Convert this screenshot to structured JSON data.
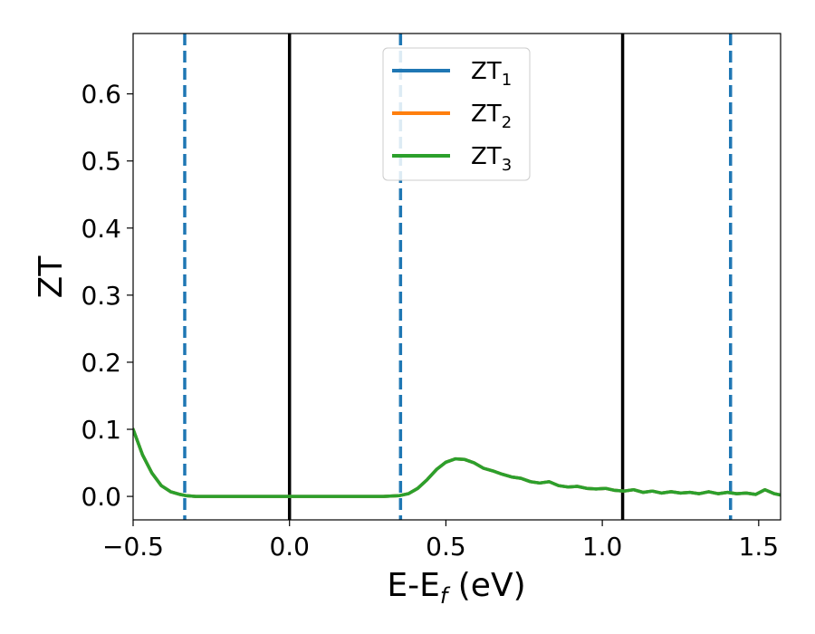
{
  "chart_data": {
    "type": "line",
    "title": "",
    "xlabel": {
      "base": "E-E",
      "sub": "f",
      "unit": " (eV)"
    },
    "ylabel": "ZT",
    "xlim": [
      -0.5,
      1.57
    ],
    "ylim": [
      -0.035,
      0.69
    ],
    "x_ticks": [
      -0.5,
      0.0,
      0.5,
      1.0,
      1.5
    ],
    "x_tick_labels": [
      "−0.5",
      "0.0",
      "0.5",
      "1.0",
      "1.5"
    ],
    "y_ticks": [
      0.0,
      0.1,
      0.2,
      0.3,
      0.4,
      0.5,
      0.6
    ],
    "y_tick_labels": [
      "0.0",
      "0.1",
      "0.2",
      "0.3",
      "0.4",
      "0.5",
      "0.6"
    ],
    "grid": false,
    "legend_position": "top-center",
    "series": [
      {
        "name": "ZT",
        "sub": "1",
        "color": "#1f77b4",
        "x": [
          -0.5,
          -0.47,
          -0.44,
          -0.41,
          -0.38,
          -0.35,
          -0.33,
          -0.3,
          -0.25,
          -0.2,
          -0.1,
          0.0,
          0.1,
          0.2,
          0.3,
          0.35,
          0.38,
          0.41,
          0.44,
          0.47,
          0.5,
          0.53,
          0.56,
          0.59,
          0.62,
          0.65,
          0.68,
          0.71,
          0.74,
          0.77,
          0.8,
          0.83,
          0.86,
          0.89,
          0.92,
          0.95,
          0.98,
          1.01,
          1.04,
          1.07,
          1.1,
          1.13,
          1.16,
          1.19,
          1.22,
          1.25,
          1.28,
          1.31,
          1.34,
          1.37,
          1.4,
          1.43,
          1.46,
          1.49,
          1.52,
          1.55,
          1.57
        ],
        "y": [
          0.1,
          0.062,
          0.035,
          0.016,
          0.007,
          0.003,
          0.001,
          0.0,
          0.0,
          0.0,
          0.0,
          0.0,
          0.0,
          0.0,
          0.0,
          0.001,
          0.004,
          0.012,
          0.025,
          0.04,
          0.051,
          0.056,
          0.055,
          0.05,
          0.042,
          0.038,
          0.033,
          0.029,
          0.027,
          0.022,
          0.02,
          0.022,
          0.016,
          0.014,
          0.015,
          0.012,
          0.011,
          0.012,
          0.009,
          0.008,
          0.01,
          0.006,
          0.008,
          0.005,
          0.007,
          0.005,
          0.006,
          0.004,
          0.007,
          0.004,
          0.006,
          0.004,
          0.005,
          0.003,
          0.01,
          0.004,
          0.002
        ]
      },
      {
        "name": "ZT",
        "sub": "2",
        "color": "#ff7f0e",
        "x": [
          -0.5,
          -0.47,
          -0.44,
          -0.41,
          -0.38,
          -0.35,
          -0.33,
          -0.3,
          -0.25,
          -0.2,
          -0.1,
          0.0,
          0.1,
          0.2,
          0.3,
          0.35,
          0.38,
          0.41,
          0.44,
          0.47,
          0.5,
          0.53,
          0.56,
          0.59,
          0.62,
          0.65,
          0.68,
          0.71,
          0.74,
          0.77,
          0.8,
          0.83,
          0.86,
          0.89,
          0.92,
          0.95,
          0.98,
          1.01,
          1.04,
          1.07,
          1.1,
          1.13,
          1.16,
          1.19,
          1.22,
          1.25,
          1.28,
          1.31,
          1.34,
          1.37,
          1.4,
          1.43,
          1.46,
          1.49,
          1.52,
          1.55,
          1.57
        ],
        "y": [
          0.1,
          0.062,
          0.035,
          0.016,
          0.007,
          0.003,
          0.001,
          0.0,
          0.0,
          0.0,
          0.0,
          0.0,
          0.0,
          0.0,
          0.0,
          0.001,
          0.004,
          0.012,
          0.025,
          0.04,
          0.051,
          0.056,
          0.055,
          0.05,
          0.042,
          0.038,
          0.033,
          0.029,
          0.027,
          0.022,
          0.02,
          0.022,
          0.016,
          0.014,
          0.015,
          0.012,
          0.011,
          0.012,
          0.009,
          0.008,
          0.01,
          0.006,
          0.008,
          0.005,
          0.007,
          0.005,
          0.006,
          0.004,
          0.007,
          0.004,
          0.006,
          0.004,
          0.005,
          0.003,
          0.01,
          0.004,
          0.002
        ]
      },
      {
        "name": "ZT",
        "sub": "3",
        "color": "#2ca02c",
        "x": [
          -0.5,
          -0.47,
          -0.44,
          -0.41,
          -0.38,
          -0.35,
          -0.33,
          -0.3,
          -0.25,
          -0.2,
          -0.1,
          0.0,
          0.1,
          0.2,
          0.3,
          0.35,
          0.38,
          0.41,
          0.44,
          0.47,
          0.5,
          0.53,
          0.56,
          0.59,
          0.62,
          0.65,
          0.68,
          0.71,
          0.74,
          0.77,
          0.8,
          0.83,
          0.86,
          0.89,
          0.92,
          0.95,
          0.98,
          1.01,
          1.04,
          1.07,
          1.1,
          1.13,
          1.16,
          1.19,
          1.22,
          1.25,
          1.28,
          1.31,
          1.34,
          1.37,
          1.4,
          1.43,
          1.46,
          1.49,
          1.52,
          1.55,
          1.57
        ],
        "y": [
          0.1,
          0.062,
          0.035,
          0.016,
          0.007,
          0.003,
          0.001,
          0.0,
          0.0,
          0.0,
          0.0,
          0.0,
          0.0,
          0.0,
          0.0,
          0.001,
          0.004,
          0.012,
          0.025,
          0.04,
          0.051,
          0.056,
          0.055,
          0.05,
          0.042,
          0.038,
          0.033,
          0.029,
          0.027,
          0.022,
          0.02,
          0.022,
          0.016,
          0.014,
          0.015,
          0.012,
          0.011,
          0.012,
          0.009,
          0.008,
          0.01,
          0.006,
          0.008,
          0.005,
          0.007,
          0.005,
          0.006,
          0.004,
          0.007,
          0.004,
          0.006,
          0.004,
          0.005,
          0.003,
          0.01,
          0.004,
          0.002
        ]
      }
    ],
    "vertical_lines": [
      {
        "x": -0.335,
        "style": "dashed",
        "color": "#1f77b4"
      },
      {
        "x": 0.0,
        "style": "solid",
        "color": "#000000"
      },
      {
        "x": 0.355,
        "style": "dashed",
        "color": "#1f77b4"
      },
      {
        "x": 1.065,
        "style": "solid",
        "color": "#000000"
      },
      {
        "x": 1.41,
        "style": "dashed",
        "color": "#1f77b4"
      }
    ]
  }
}
